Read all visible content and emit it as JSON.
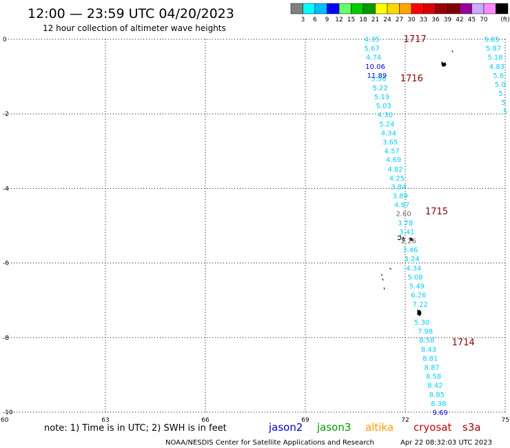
{
  "chart_data": {
    "type": "scatter",
    "title": "12:00 — 23:59 UTC 04/20/2023",
    "subtitle": "12 hour collection of altimeter wave heights",
    "x_range": [
      60,
      75
    ],
    "y_range": [
      -10,
      0
    ],
    "x_ticks": [
      "60",
      "63",
      "66",
      "69",
      "72",
      "75"
    ],
    "y_ticks": [
      "0",
      "-2",
      "-4",
      "-6",
      "-8",
      "-10"
    ],
    "colorbar": {
      "labels": [
        "3",
        "6",
        "9",
        "12",
        "15",
        "18",
        "21",
        "24",
        "27",
        "30",
        "33",
        "36",
        "39",
        "42",
        "45",
        "70"
      ],
      "unit": "(ft)",
      "colors": [
        "#808080",
        "#00ffff",
        "#00bfff",
        "#0000ff",
        "#66ff66",
        "#00cc00",
        "#009900",
        "#ffff00",
        "#ffd700",
        "#ffa500",
        "#ff0000",
        "#dd0000",
        "#990000",
        "#800000",
        "#990099",
        "#ccaaff",
        "#ff88ff",
        "#000000"
      ]
    },
    "pass_labels": [
      {
        "text": "1717",
        "x": 71.95,
        "y": 0.0
      },
      {
        "text": "1716",
        "x": 71.85,
        "y": -1.05
      },
      {
        "text": "1715",
        "x": 72.6,
        "y": -4.62
      },
      {
        "text": "1714",
        "x": 73.4,
        "y": -8.13
      }
    ],
    "series": [
      {
        "name": "cryosat",
        "color": "#00ccff",
        "points": [
          {
            "x": 71.0,
            "y": 0.0,
            "v": "4.35"
          },
          {
            "x": 71.0,
            "y": -0.24,
            "v": "5.67"
          },
          {
            "x": 71.05,
            "y": -0.48,
            "v": "4.74"
          },
          {
            "x": 71.1,
            "y": -0.73,
            "v": "10.06",
            "color": "#0000cc"
          },
          {
            "x": 71.15,
            "y": -0.97,
            "v": "11.89",
            "color": "#0000cc"
          },
          {
            "x": 71.2,
            "y": -1.05,
            "v": "5.56"
          },
          {
            "x": 71.25,
            "y": -1.3,
            "v": "5.22"
          },
          {
            "x": 71.3,
            "y": -1.54,
            "v": "5.19"
          },
          {
            "x": 71.35,
            "y": -1.78,
            "v": "5.03"
          },
          {
            "x": 71.4,
            "y": -2.02,
            "v": "4.30"
          },
          {
            "x": 71.45,
            "y": -2.27,
            "v": "5.24"
          },
          {
            "x": 71.5,
            "y": -2.51,
            "v": "4.34"
          },
          {
            "x": 71.55,
            "y": -2.75,
            "v": "3.65"
          },
          {
            "x": 71.6,
            "y": -2.99,
            "v": "4.57"
          },
          {
            "x": 71.65,
            "y": -3.23,
            "v": "4.69"
          },
          {
            "x": 71.7,
            "y": -3.48,
            "v": "4.82"
          },
          {
            "x": 71.75,
            "y": -3.72,
            "v": "4.25"
          },
          {
            "x": 71.8,
            "y": -3.96,
            "v": "3.84"
          },
          {
            "x": 71.85,
            "y": -4.2,
            "v": "3.89"
          },
          {
            "x": 71.9,
            "y": -4.44,
            "v": "4.87"
          },
          {
            "x": 71.95,
            "y": -4.68,
            "v": "2.60",
            "color": "#666666"
          },
          {
            "x": 72.0,
            "y": -4.93,
            "v": "3.78"
          },
          {
            "x": 72.05,
            "y": -5.17,
            "v": "3.41"
          },
          {
            "x": 72.1,
            "y": -5.41,
            "v": "2.26",
            "color": "#666666"
          },
          {
            "x": 72.15,
            "y": -5.65,
            "v": "3.46"
          },
          {
            "x": 72.2,
            "y": -5.89,
            "v": "3.24"
          },
          {
            "x": 72.25,
            "y": -6.14,
            "v": "4.34"
          },
          {
            "x": 72.3,
            "y": -6.38,
            "v": "5.08"
          },
          {
            "x": 72.35,
            "y": -6.62,
            "v": "5.49"
          },
          {
            "x": 72.4,
            "y": -6.86,
            "v": "6.26"
          },
          {
            "x": 72.45,
            "y": -7.11,
            "v": "7.22"
          },
          {
            "x": 72.5,
            "y": -7.59,
            "v": "5.30"
          },
          {
            "x": 72.6,
            "y": -7.83,
            "v": "7.98"
          },
          {
            "x": 72.65,
            "y": -8.07,
            "v": "8.58"
          },
          {
            "x": 72.7,
            "y": -8.32,
            "v": "8.43"
          },
          {
            "x": 72.75,
            "y": -8.56,
            "v": "8.81"
          },
          {
            "x": 72.8,
            "y": -8.8,
            "v": "8.87"
          },
          {
            "x": 72.85,
            "y": -9.04,
            "v": "8.58"
          },
          {
            "x": 72.9,
            "y": -9.28,
            "v": "8.42"
          },
          {
            "x": 72.95,
            "y": -9.53,
            "v": "8.85"
          },
          {
            "x": 73.0,
            "y": -9.77,
            "v": "8.38"
          },
          {
            "x": 73.05,
            "y": -10.01,
            "v": "9.69",
            "color": "#0000cc"
          },
          {
            "x": 74.6,
            "y": 0.0,
            "v": "5.85"
          },
          {
            "x": 74.65,
            "y": -0.24,
            "v": "5.87"
          },
          {
            "x": 74.7,
            "y": -0.48,
            "v": "5.18"
          },
          {
            "x": 74.75,
            "y": -0.73,
            "v": "4.83"
          },
          {
            "x": 74.8,
            "y": -0.97,
            "v": "5.6"
          },
          {
            "x": 74.85,
            "y": -1.21,
            "v": "5.0"
          },
          {
            "x": 74.9,
            "y": -1.45,
            "v": "5."
          },
          {
            "x": 74.95,
            "y": -1.69,
            "v": "5"
          },
          {
            "x": 75.0,
            "y": -1.94,
            "v": "5"
          }
        ]
      }
    ]
  },
  "footer": {
    "note": "note:  1) Time is in UTC;  2) SWH is in feet",
    "satellites": [
      {
        "name": "jason2",
        "color": "#0000cc"
      },
      {
        "name": "jason3",
        "color": "#009900"
      },
      {
        "name": "altika",
        "color": "#ff9900"
      },
      {
        "name": "cryosat",
        "color": "#cc0000"
      },
      {
        "name": "s3a",
        "color": "#990000"
      }
    ],
    "credit": "NOAA/NESDIS Center for Satellite Applications and Research",
    "timestamp": "Apr 22 08:32:03 UTC 2023"
  }
}
